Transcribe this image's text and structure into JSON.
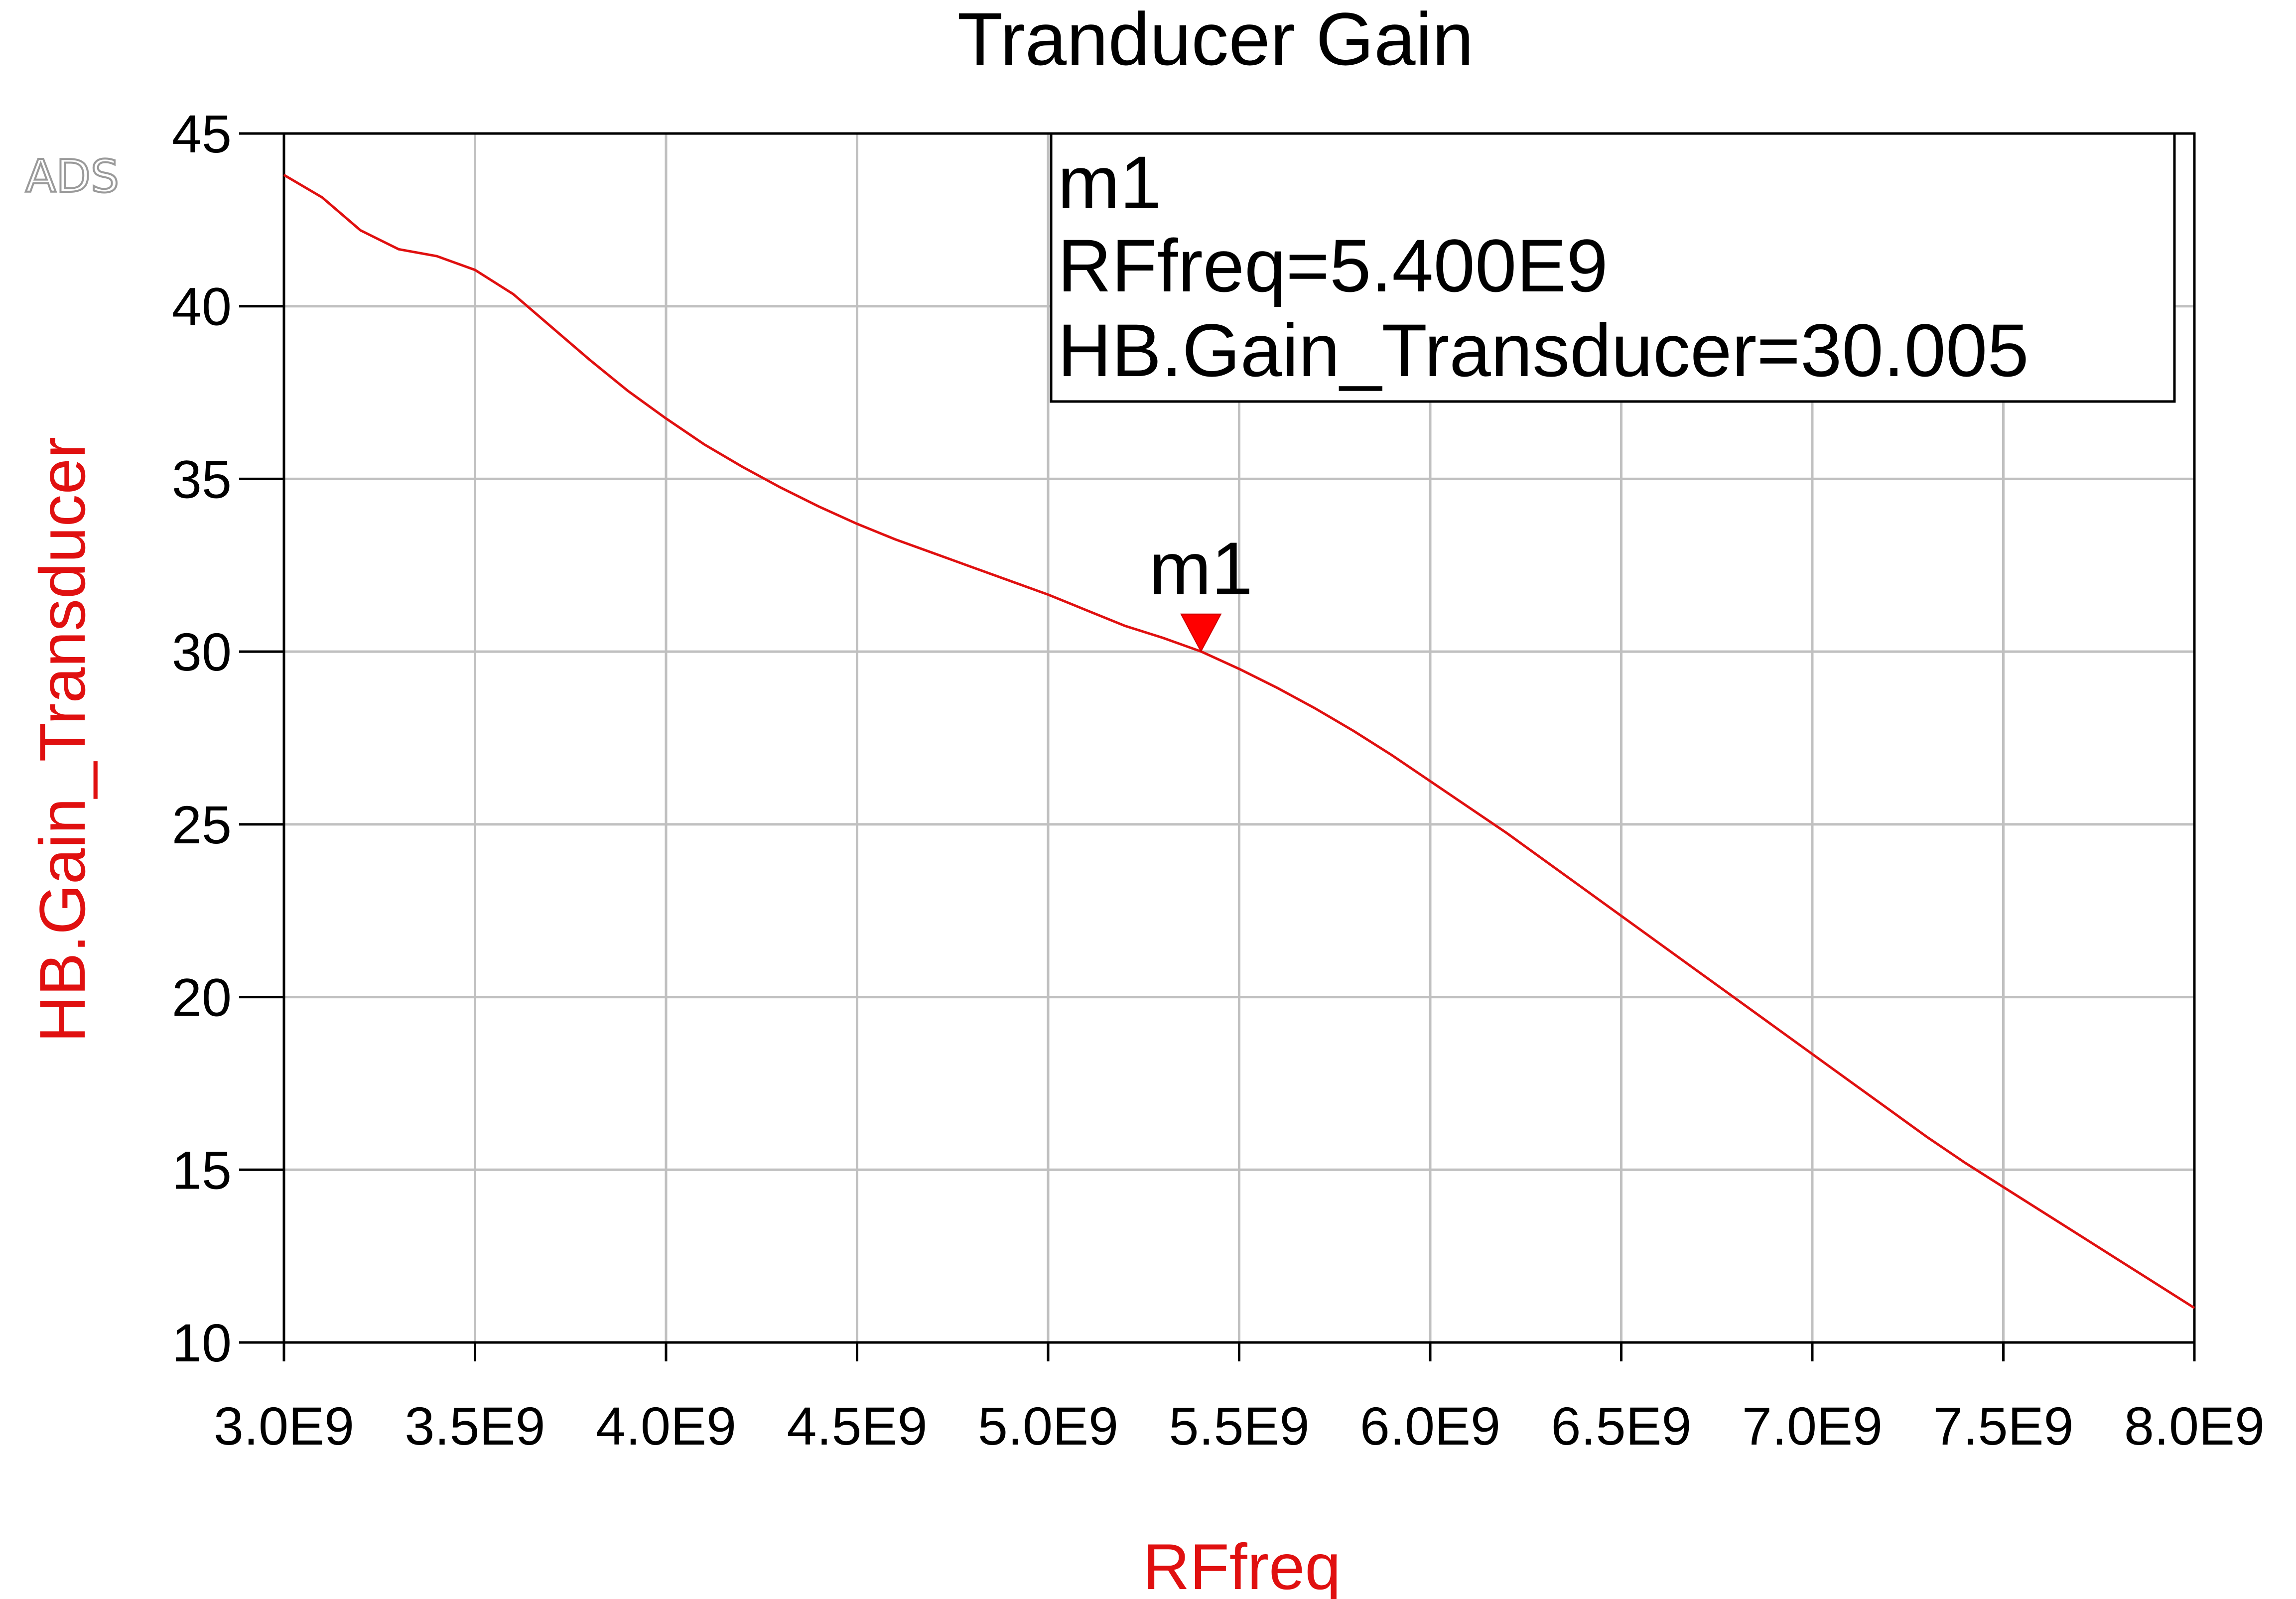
{
  "chart_data": {
    "type": "line",
    "title": "Tranducer Gain",
    "xlabel": "RFfreq",
    "ylabel": "HB.Gain_Transducer",
    "xlim": [
      3000000000.0,
      8000000000.0
    ],
    "ylim": [
      10,
      45
    ],
    "grid": true,
    "xticks": [
      {
        "value": 3000000000.0,
        "label": "3.0E9"
      },
      {
        "value": 3500000000.0,
        "label": "3.5E9"
      },
      {
        "value": 4000000000.0,
        "label": "4.0E9"
      },
      {
        "value": 4500000000.0,
        "label": "4.5E9"
      },
      {
        "value": 5000000000.0,
        "label": "5.0E9"
      },
      {
        "value": 5500000000.0,
        "label": "5.5E9"
      },
      {
        "value": 6000000000.0,
        "label": "6.0E9"
      },
      {
        "value": 6500000000.0,
        "label": "6.5E9"
      },
      {
        "value": 7000000000.0,
        "label": "7.0E9"
      },
      {
        "value": 7500000000.0,
        "label": "7.5E9"
      },
      {
        "value": 8000000000.0,
        "label": "8.0E9"
      }
    ],
    "yticks": [
      {
        "value": 10,
        "label": "10"
      },
      {
        "value": 15,
        "label": "15"
      },
      {
        "value": 20,
        "label": "20"
      },
      {
        "value": 25,
        "label": "25"
      },
      {
        "value": 30,
        "label": "30"
      },
      {
        "value": 35,
        "label": "35"
      },
      {
        "value": 40,
        "label": "40"
      },
      {
        "value": 45,
        "label": "45"
      }
    ],
    "series": [
      {
        "color": "#e01010",
        "x": [
          3000000000.0,
          3100000000.0,
          3200000000.0,
          3300000000.0,
          3400000000.0,
          3500000000.0,
          3600000000.0,
          3700000000.0,
          3800000000.0,
          3900000000.0,
          4000000000.0,
          4100000000.0,
          4200000000.0,
          4300000000.0,
          4400000000.0,
          4500000000.0,
          4600000000.0,
          4700000000.0,
          4800000000.0,
          4900000000.0,
          5000000000.0,
          5100000000.0,
          5200000000.0,
          5300000000.0,
          5400000000.0,
          5500000000.0,
          5600000000.0,
          5700000000.0,
          5800000000.0,
          5900000000.0,
          6000000000.0,
          6100000000.0,
          6200000000.0,
          6300000000.0,
          6400000000.0,
          6500000000.0,
          6600000000.0,
          6700000000.0,
          6800000000.0,
          6900000000.0,
          7000000000.0,
          7100000000.0,
          7200000000.0,
          7300000000.0,
          7400000000.0,
          7500000000.0,
          7600000000.0,
          7700000000.0,
          7800000000.0,
          7900000000.0,
          8000000000.0
        ],
        "y": [
          43.8,
          43.15,
          42.2,
          41.65,
          41.45,
          41.05,
          40.35,
          39.4,
          38.45,
          37.55,
          36.75,
          36.0,
          35.35,
          34.75,
          34.2,
          33.7,
          33.25,
          32.85,
          32.45,
          32.05,
          31.65,
          31.2,
          30.75,
          30.4,
          30.005,
          29.5,
          28.95,
          28.35,
          27.7,
          27.0,
          26.25,
          25.5,
          24.75,
          23.95,
          23.15,
          22.35,
          21.55,
          20.75,
          19.95,
          19.15,
          18.35,
          17.55,
          16.75,
          15.95,
          15.2,
          14.5,
          13.8,
          13.1,
          12.4,
          11.7,
          11.0
        ]
      }
    ],
    "marker": {
      "name": "m1",
      "x": 5400000000.0,
      "y": 30.005,
      "readout": [
        "m1",
        "RFfreq=5.400E9",
        "HB.Gain_Transducer=30.005"
      ]
    },
    "watermark": "ADS"
  }
}
